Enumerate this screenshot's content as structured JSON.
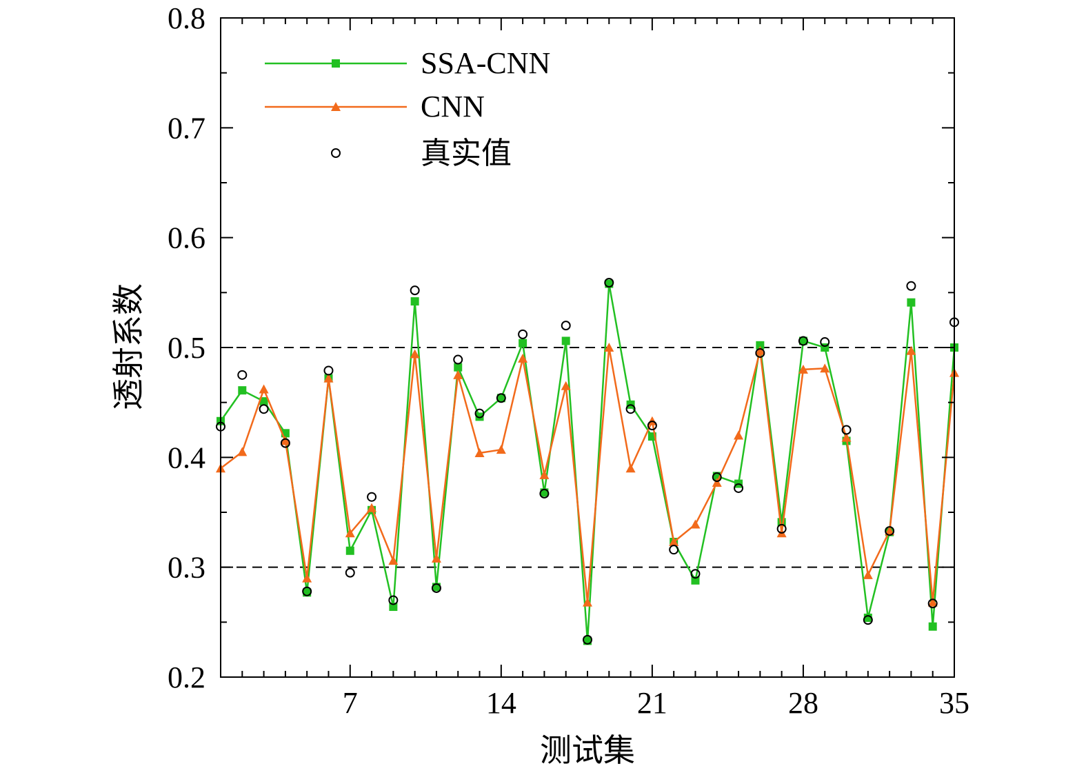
{
  "chart_data": {
    "type": "line",
    "xlabel": "测试集",
    "ylabel": "透射系数",
    "xlim": [
      1,
      35
    ],
    "ylim": [
      0.2,
      0.8
    ],
    "x_ticks": [
      7,
      14,
      21,
      28,
      35
    ],
    "y_ticks": [
      0.2,
      0.3,
      0.4,
      0.5,
      0.6,
      0.7,
      0.8
    ],
    "grid": false,
    "legend_position": "top-left",
    "reference_lines": [
      0.5,
      0.3
    ],
    "x": [
      1,
      2,
      3,
      4,
      5,
      6,
      7,
      8,
      9,
      10,
      11,
      12,
      13,
      14,
      15,
      16,
      17,
      18,
      19,
      20,
      21,
      22,
      23,
      24,
      25,
      26,
      27,
      28,
      29,
      30,
      31,
      32,
      33,
      34,
      35
    ],
    "series": [
      {
        "name": "SSA-CNN",
        "color": "#22c022",
        "marker": "square",
        "values": [
          0.433,
          0.461,
          0.451,
          0.422,
          0.277,
          0.472,
          0.315,
          0.352,
          0.264,
          0.542,
          0.282,
          0.482,
          0.437,
          0.454,
          0.504,
          0.368,
          0.506,
          0.233,
          0.558,
          0.448,
          0.419,
          0.323,
          0.288,
          0.383,
          0.376,
          0.502,
          0.341,
          0.506,
          0.5,
          0.415,
          0.254,
          0.332,
          0.541,
          0.246,
          0.5
        ]
      },
      {
        "name": "CNN",
        "color": "#f26a1b",
        "marker": "triangle",
        "values": [
          0.39,
          0.405,
          0.462,
          0.415,
          0.29,
          0.472,
          0.331,
          0.354,
          0.306,
          0.494,
          0.308,
          0.475,
          0.404,
          0.407,
          0.49,
          0.384,
          0.465,
          0.268,
          0.5,
          0.39,
          0.433,
          0.323,
          0.339,
          0.377,
          0.42,
          0.497,
          0.331,
          0.48,
          0.481,
          0.418,
          0.293,
          0.333,
          0.497,
          0.268,
          0.477
        ]
      },
      {
        "name": "真实值",
        "color": "#000000",
        "marker": "open-circle",
        "values": [
          0.428,
          0.475,
          0.444,
          0.413,
          0.278,
          0.479,
          0.295,
          0.364,
          0.27,
          0.552,
          0.281,
          0.489,
          0.44,
          0.454,
          0.512,
          0.367,
          0.52,
          0.234,
          0.559,
          0.444,
          0.429,
          0.316,
          0.294,
          0.382,
          0.372,
          0.495,
          0.335,
          0.506,
          0.505,
          0.425,
          0.252,
          0.333,
          0.556,
          0.267,
          0.523
        ]
      }
    ]
  }
}
